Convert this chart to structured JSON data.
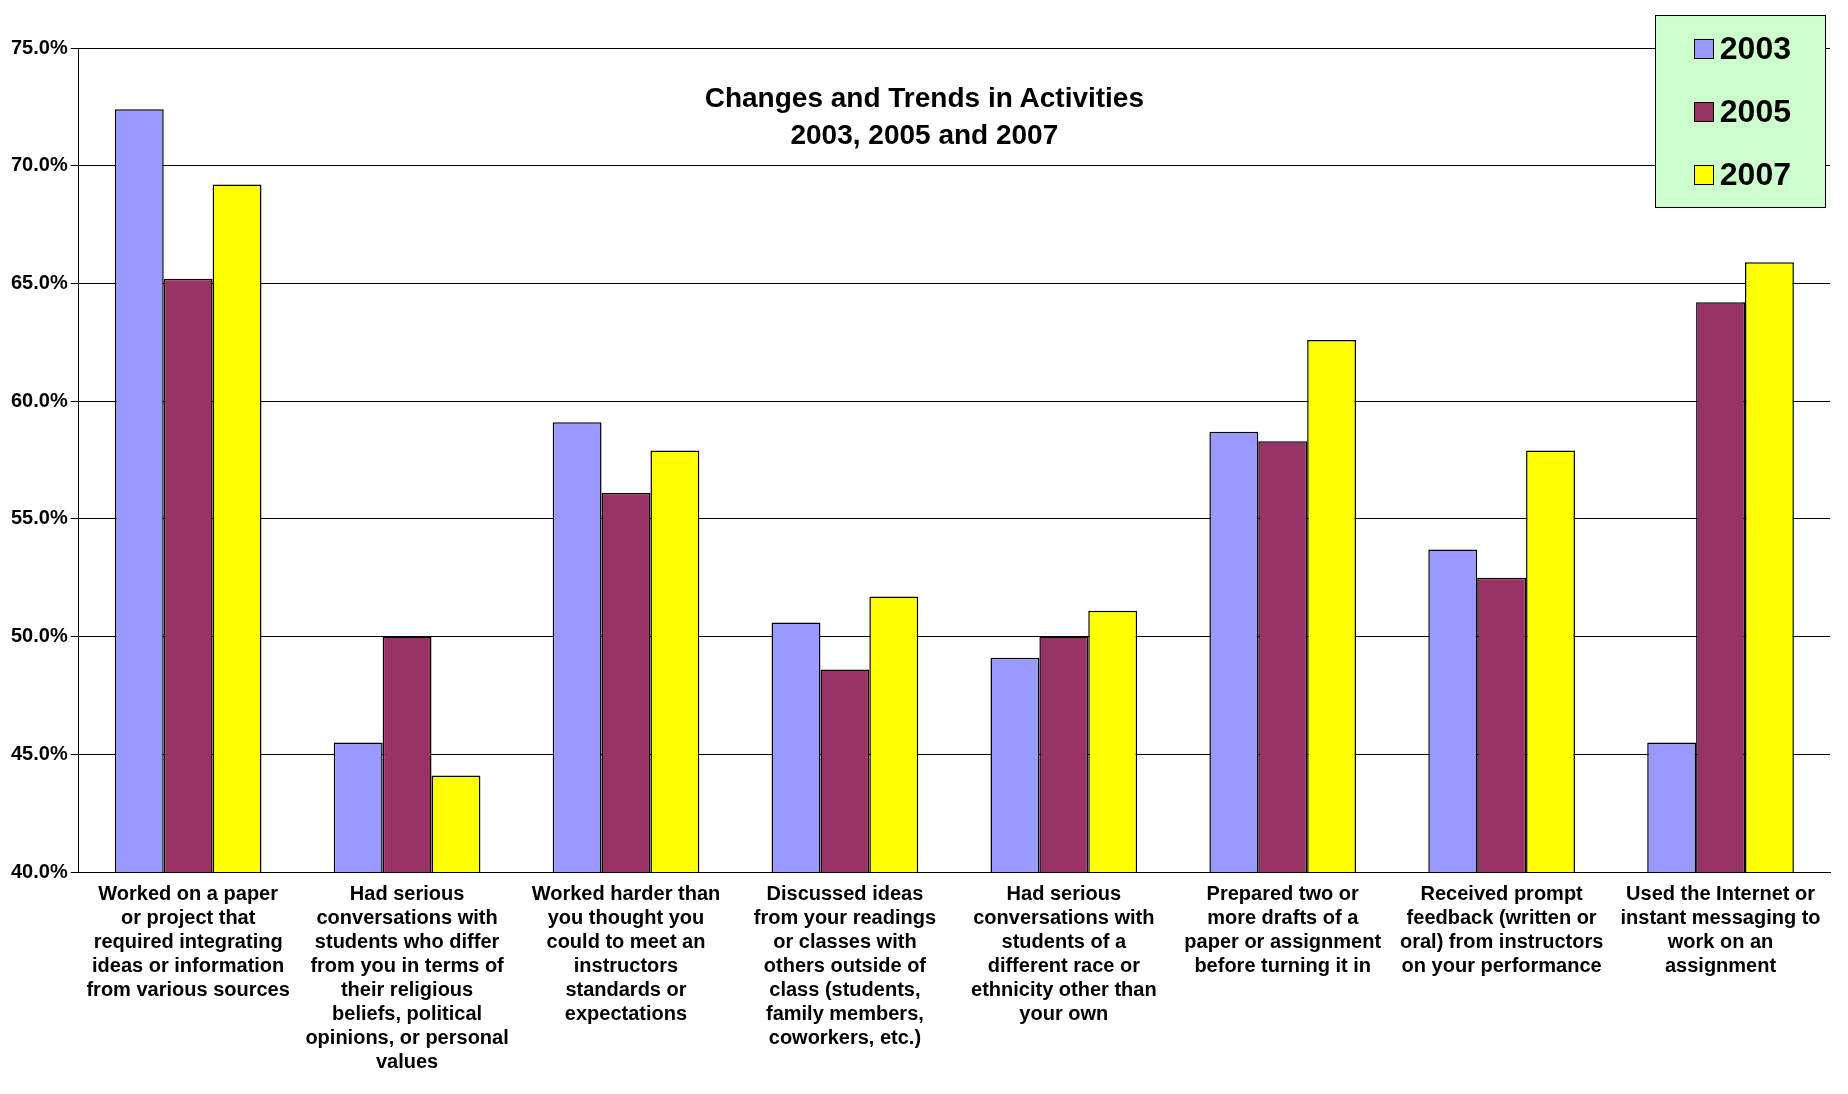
{
  "chart_data": {
    "type": "bar",
    "title": "Changes and Trends in Activities",
    "subtitle": "2003, 2005 and 2007",
    "categories": [
      "Worked on a paper or project that required integrating ideas or information from various sources",
      "Had serious conversations with students who differ from you in terms of their religious beliefs, political opinions, or personal values",
      "Worked harder than you thought you could to meet an instructors standards or expectations",
      "Discussed ideas from your readings or classes with others outside of class (students, family members, coworkers, etc.)",
      "Had serious conversations with students of a different race or ethnicity other than your own",
      "Prepared two or more drafts of a paper or assignment before turning it in",
      "Received prompt feedback (written or oral) from instructors on your performance",
      "Used the Internet or instant messaging to work on an assignment"
    ],
    "series": [
      {
        "name": "2003",
        "color": "#9999ff",
        "values": [
          72.4,
          45.5,
          59.1,
          50.6,
          49.1,
          58.7,
          53.7,
          45.5
        ]
      },
      {
        "name": "2005",
        "color": "#993366",
        "values": [
          65.2,
          50.0,
          56.1,
          48.6,
          50.0,
          58.3,
          52.5,
          64.2
        ]
      },
      {
        "name": "2007",
        "color": "#ffff00",
        "values": [
          69.2,
          44.1,
          57.9,
          51.7,
          51.1,
          62.6,
          57.9,
          65.9
        ]
      }
    ],
    "ylim": [
      40,
      75
    ],
    "yticks": [
      {
        "value": 40,
        "label": "40.0%"
      },
      {
        "value": 45,
        "label": "45.0%"
      },
      {
        "value": 50,
        "label": "50.0%"
      },
      {
        "value": 55,
        "label": "55.0%"
      },
      {
        "value": 60,
        "label": "60.0%"
      },
      {
        "value": 65,
        "label": "65.0%"
      },
      {
        "value": 70,
        "label": "70.0%"
      },
      {
        "value": 75,
        "label": "75.0%"
      }
    ],
    "grid": "y",
    "legend": "top right"
  }
}
